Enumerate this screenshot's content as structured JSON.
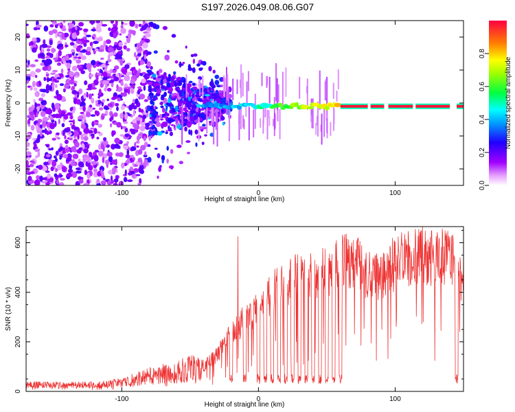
{
  "title": "S197.2026.049.08.06.G07",
  "chart_data": [
    {
      "type": "heatmap",
      "name": "spectrogram",
      "xlabel": "Height of straight line (km)",
      "ylabel": "Frequency (Hz)",
      "xlim": [
        -170,
        150
      ],
      "ylim": [
        -25,
        25
      ],
      "xticks": [
        -100,
        0,
        100
      ],
      "xtick_labels": [
        "-100",
        "0",
        "100"
      ],
      "yticks": [
        -20,
        -10,
        0,
        10,
        20
      ],
      "ytick_labels": [
        "-20",
        "-10",
        "0",
        "10",
        "20"
      ],
      "carrier_frequency_hz": -1,
      "colorbar": {
        "label": "Normalized spectral amplitude",
        "range": [
          0,
          1
        ],
        "ticks": [
          0.0,
          0.2,
          0.4,
          0.6,
          0.8
        ],
        "tick_labels": [
          "0.0",
          "0.2",
          "0.4",
          "0.6",
          "0.8"
        ],
        "colormap": "rainbow (magenta→blue→cyan→green→yellow→red)"
      }
    },
    {
      "type": "line",
      "name": "snr",
      "xlabel": "Height of straight line (km)",
      "ylabel": "SNR (10 * v/v)",
      "xlim": [
        -170,
        150
      ],
      "ylim": [
        0,
        665
      ],
      "xticks": [
        -100,
        0,
        100
      ],
      "xtick_labels": [
        "-100",
        "0",
        "100"
      ],
      "yticks": [
        0,
        200,
        400,
        600
      ],
      "ytick_labels": [
        "0",
        "200",
        "400",
        "600"
      ],
      "color": "#ee3333",
      "envelope": {
        "x": [
          -170,
          -120,
          -100,
          -80,
          -60,
          -40,
          -30,
          -20,
          -10,
          0,
          10,
          20,
          30,
          40,
          50,
          60,
          70,
          80,
          90,
          100,
          110,
          120,
          130,
          140,
          147
        ],
        "y": [
          25,
          25,
          35,
          60,
          80,
          100,
          150,
          230,
          290,
          340,
          400,
          430,
          470,
          480,
          480,
          520,
          530,
          470,
          470,
          520,
          540,
          540,
          540,
          540,
          470
        ]
      },
      "dropouts_x": [
        -20,
        -10,
        0,
        5,
        10,
        15,
        20,
        25,
        30,
        35,
        40,
        45,
        50,
        55,
        60,
        145
      ],
      "spikes": [
        {
          "x": -15,
          "y": 625
        },
        {
          "x": 120,
          "y": 665
        }
      ]
    }
  ]
}
